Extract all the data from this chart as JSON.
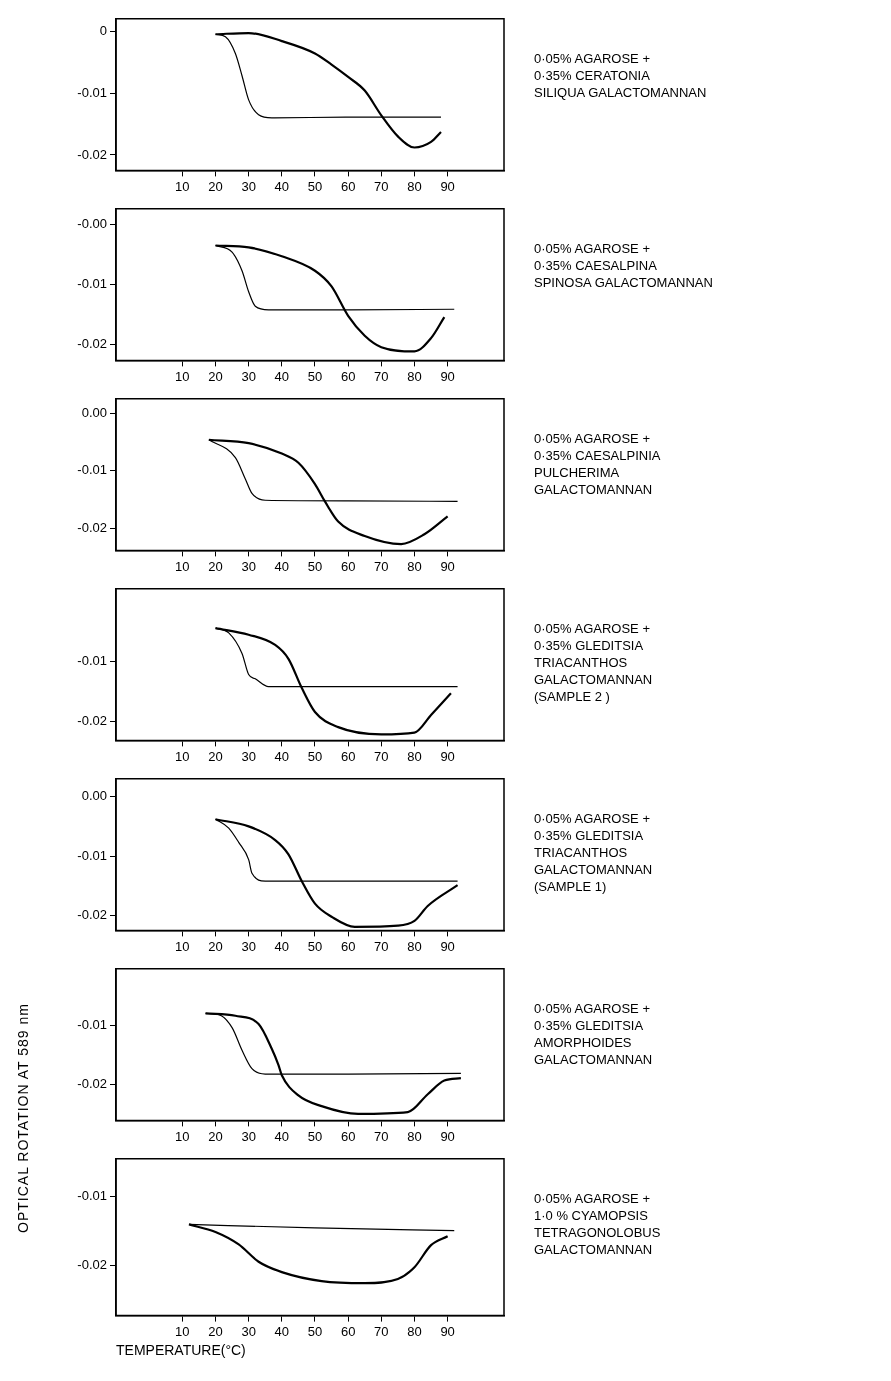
{
  "chart_data": [
    {
      "type": "line",
      "annotations": [
        "0·05% AGAROSE +\n0·35% CERATONIA\nSILIQUA GALACTOMANNAN"
      ],
      "xlim": [
        -10,
        107
      ],
      "xticks": [
        10,
        20,
        30,
        40,
        50,
        60,
        70,
        80,
        90
      ],
      "ylim": [
        -0.0225,
        0.002
      ],
      "yticks": [
        {
          "value": 0,
          "label": "0"
        },
        {
          "value": -0.01,
          "label": "-0.01"
        },
        {
          "value": -0.02,
          "label": "-0.02"
        }
      ],
      "series": [
        {
          "color": "#000000",
          "x": [
            20,
            30,
            40,
            50,
            55,
            60,
            65,
            70,
            75,
            80,
            85,
            88
          ],
          "values": [
            -0.0005,
            -0.0003,
            -0.0016,
            -0.0036,
            -0.0054,
            -0.0074,
            -0.0096,
            -0.0136,
            -0.017,
            -0.0188,
            -0.0179,
            -0.0163
          ]
        },
        {
          "color": "#000000",
          "x": [
            88,
            60,
            37,
            33,
            30,
            28,
            26,
            23,
            20
          ],
          "values": [
            -0.0139,
            -0.0139,
            -0.014,
            -0.0135,
            -0.0111,
            -0.0072,
            -0.0036,
            -0.0009,
            -0.0005
          ]
        }
      ]
    },
    {
      "type": "line",
      "annotations": [
        "0·05% AGAROSE +\n0·35% CAESALPINA\nSPINOSA GALACTOMANNAN"
      ],
      "xlim": [
        -10,
        107
      ],
      "xticks": [
        10,
        20,
        30,
        40,
        50,
        60,
        70,
        80,
        90
      ],
      "ylim": [
        -0.0226,
        0.0026
      ],
      "yticks": [
        {
          "value": 0,
          "label": "-0.00"
        },
        {
          "value": -0.01,
          "label": "-0.01"
        },
        {
          "value": -0.02,
          "label": "-0.02"
        }
      ],
      "series": [
        {
          "color": "#000000",
          "x": [
            20,
            30,
            40,
            50,
            55,
            60,
            65,
            70,
            80,
            85,
            89
          ],
          "values": [
            -0.0035,
            -0.0038,
            -0.0053,
            -0.0077,
            -0.0103,
            -0.0152,
            -0.0185,
            -0.0204,
            -0.0211,
            -0.0189,
            -0.0154
          ]
        },
        {
          "color": "#000000",
          "x": [
            92,
            60,
            36,
            32,
            30,
            28,
            25,
            20
          ],
          "values": [
            -0.0141,
            -0.0142,
            -0.0142,
            -0.0136,
            -0.0112,
            -0.0077,
            -0.0046,
            -0.0035
          ]
        }
      ]
    },
    {
      "type": "line",
      "annotations": [
        "0·05% AGAROSE +\n0·35% CAESALPINIA\nPULCHERIMA\nGALACTOMANNAN"
      ],
      "xlim": [
        -10,
        107
      ],
      "xticks": [
        10,
        20,
        30,
        40,
        50,
        60,
        70,
        80,
        90
      ],
      "ylim": [
        -0.0238,
        0.0025
      ],
      "yticks": [
        {
          "value": 0,
          "label": "0.00"
        },
        {
          "value": -0.01,
          "label": "-0.01"
        },
        {
          "value": -0.02,
          "label": "-0.02"
        }
      ],
      "series": [
        {
          "color": "#000000",
          "x": [
            18,
            30,
            40,
            45,
            50,
            53,
            57,
            65,
            76,
            83,
            90
          ],
          "values": [
            -0.0046,
            -0.0052,
            -0.007,
            -0.0086,
            -0.0123,
            -0.0153,
            -0.0188,
            -0.0213,
            -0.0227,
            -0.021,
            -0.0179
          ]
        },
        {
          "color": "#000000",
          "x": [
            93,
            60,
            35,
            31,
            29,
            26,
            18
          ],
          "values": [
            -0.0153,
            -0.0152,
            -0.0151,
            -0.0139,
            -0.0114,
            -0.0077,
            -0.0046
          ]
        }
      ]
    },
    {
      "type": "line",
      "annotations": [
        "0·05% AGAROSE +\n0·35% GLEDITSIA\nTRIACANTHOS\nGALACTOMANNAN\n(SAMPLE 2 )"
      ],
      "xlim": [
        -10,
        107
      ],
      "xticks": [
        10,
        20,
        30,
        40,
        50,
        60,
        70,
        80,
        90
      ],
      "ylim": [
        -0.0231,
        0.002
      ],
      "yticks": [
        {
          "value": -0.01,
          "label": "-0.01"
        },
        {
          "value": -0.02,
          "label": "-0.02"
        }
      ],
      "series": [
        {
          "color": "#000000",
          "x": [
            20,
            30,
            38,
            42,
            46,
            50,
            57,
            70,
            80,
            85,
            91
          ],
          "values": [
            -0.0045,
            -0.0056,
            -0.0073,
            -0.0096,
            -0.0144,
            -0.0184,
            -0.0209,
            -0.0221,
            -0.0218,
            -0.0189,
            -0.0153
          ]
        },
        {
          "color": "#000000",
          "x": [
            93,
            60,
            36,
            32,
            30,
            28,
            24,
            20
          ],
          "values": [
            -0.0142,
            -0.0142,
            -0.0142,
            -0.0129,
            -0.0122,
            -0.0087,
            -0.0053,
            -0.0045
          ]
        }
      ]
    },
    {
      "type": "line",
      "annotations": [
        "0·05% AGAROSE +\n0·35% GLEDITSIA\nTRIACANTHOS\nGALACTOMANNAN\n(SAMPLE 1)"
      ],
      "xlim": [
        -10,
        107
      ],
      "xticks": [
        10,
        20,
        30,
        40,
        50,
        60,
        70,
        80,
        90
      ],
      "ylim": [
        -0.0225,
        0.003
      ],
      "yticks": [
        {
          "value": 0,
          "label": "0.00"
        },
        {
          "value": -0.01,
          "label": "-0.01"
        },
        {
          "value": -0.02,
          "label": "-0.02"
        }
      ],
      "series": [
        {
          "color": "#000000",
          "x": [
            20,
            30,
            38,
            42,
            46,
            50,
            55,
            62,
            75,
            80,
            84,
            93
          ],
          "values": [
            -0.0038,
            -0.005,
            -0.0073,
            -0.0097,
            -0.0142,
            -0.018,
            -0.0202,
            -0.0219,
            -0.0217,
            -0.0209,
            -0.0184,
            -0.0149
          ]
        },
        {
          "color": "#000000",
          "x": [
            93,
            60,
            35,
            31,
            30,
            27,
            24,
            20
          ],
          "values": [
            -0.0142,
            -0.0142,
            -0.0142,
            -0.0129,
            -0.0106,
            -0.0077,
            -0.0053,
            -0.0038
          ]
        }
      ]
    },
    {
      "type": "line",
      "annotations": [
        "0·05% AGAROSE +\n0·35% GLEDITSIA\nAMORPHOIDES\nGALACTOMANNAN"
      ],
      "xlim": [
        -10,
        107
      ],
      "xticks": [
        10,
        20,
        30,
        40,
        50,
        60,
        70,
        80,
        90
      ],
      "ylim": [
        -0.026,
        -0.0005
      ],
      "yticks": [
        {
          "value": -0.01,
          "label": "-0.01"
        },
        {
          "value": -0.02,
          "label": "-0.02"
        }
      ],
      "series": [
        {
          "color": "#000000",
          "x": [
            17,
            26,
            33,
            37,
            39,
            40,
            45,
            52,
            63,
            78,
            84,
            89,
            94
          ],
          "values": [
            -0.008,
            -0.0084,
            -0.0098,
            -0.014,
            -0.0167,
            -0.0184,
            -0.0218,
            -0.0236,
            -0.0249,
            -0.0246,
            -0.0216,
            -0.0193,
            -0.0189
          ]
        },
        {
          "color": "#000000",
          "x": [
            94,
            60,
            35,
            31,
            28,
            25,
            21,
            17
          ],
          "values": [
            -0.0181,
            -0.0182,
            -0.0182,
            -0.0173,
            -0.0142,
            -0.0104,
            -0.0082,
            -0.008
          ]
        }
      ]
    },
    {
      "type": "line",
      "annotations": [
        "0·05% AGAROSE +\n1·0 % CYAMOPSIS\nTETRAGONOLOBUS\nGALACTOMANNAN"
      ],
      "xlabel": "TEMPERATURE(°C)",
      "ylabel": "OPTICAL ROTATION AT 589 nm",
      "xlim": [
        -10,
        107
      ],
      "xticks": [
        10,
        20,
        30,
        40,
        50,
        60,
        70,
        80,
        90
      ],
      "ylim": [
        -0.0273,
        -0.0046
      ],
      "yticks": [
        {
          "value": -0.01,
          "label": "-0.01"
        },
        {
          "value": -0.02,
          "label": "-0.02"
        }
      ],
      "series": [
        {
          "color": "#000000",
          "x": [
            12,
            20,
            27,
            33,
            40,
            52,
            65,
            75,
            80,
            85,
            90
          ],
          "values": [
            -0.0141,
            -0.0152,
            -0.017,
            -0.0195,
            -0.021,
            -0.0223,
            -0.0226,
            -0.022,
            -0.0203,
            -0.0171,
            -0.0158
          ]
        },
        {
          "color": "#000000",
          "x": [
            92,
            50,
            12
          ],
          "values": [
            -0.015,
            -0.0146,
            -0.0141
          ]
        }
      ]
    }
  ]
}
